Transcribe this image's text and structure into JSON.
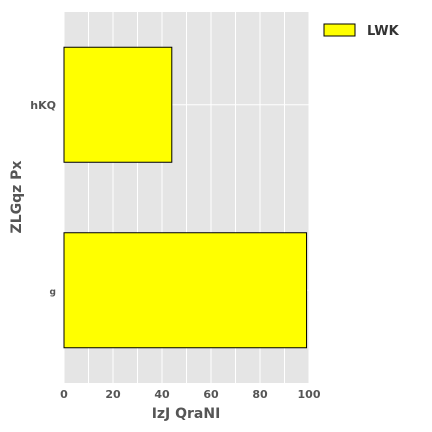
{
  "chart_data": {
    "type": "bar",
    "orientation": "horizontal",
    "categories": [
      "hKQ",
      "g"
    ],
    "series": [
      {
        "name": "LWK",
        "values": [
          44,
          99
        ],
        "color": "#ffff00"
      }
    ],
    "xlabel": "IzJ QraNI",
    "ylabel": "ZLGqz Px",
    "xlim": [
      0,
      100
    ],
    "xticks": [
      "0",
      "20",
      "40",
      "60",
      "80",
      "100"
    ],
    "grid": true,
    "legend_position": "top-right",
    "plot_background": "#e5e5e5",
    "bar_edge_color": "#000000"
  }
}
